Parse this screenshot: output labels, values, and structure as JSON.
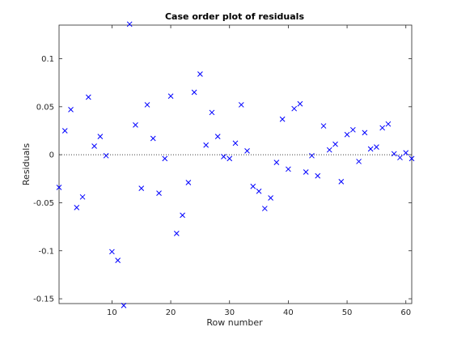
{
  "chart_data": {
    "type": "scatter",
    "title": "Case order plot of residuals",
    "xlabel": "Row number",
    "ylabel": "Residuals",
    "xlim": [
      1,
      61
    ],
    "ylim": [
      -0.155,
      0.135
    ],
    "xticks": [
      10,
      20,
      30,
      40,
      50,
      60
    ],
    "yticks": [
      -0.15,
      -0.1,
      -0.05,
      0,
      0.05,
      0.1
    ],
    "ytick_labels": [
      "-0.15",
      "-0.1",
      "-0.05",
      "0",
      "0.05",
      "0.1"
    ],
    "reference_line": {
      "y": 0,
      "style": "dotted"
    },
    "marker": "x",
    "marker_color": "#0000ff",
    "grid": false,
    "series": [
      {
        "x": [
          1,
          2,
          3,
          4,
          5,
          6,
          7,
          8,
          9,
          10,
          11,
          12,
          13,
          14,
          15,
          16,
          17,
          18,
          19,
          20,
          21,
          22,
          23,
          24,
          25,
          26,
          27,
          28,
          29,
          30,
          31,
          32,
          33,
          34,
          35,
          36,
          37,
          38,
          39,
          40,
          41,
          42,
          43,
          44,
          45,
          46,
          47,
          48,
          49,
          50,
          51,
          52,
          53,
          54,
          55,
          56,
          57,
          58,
          59,
          60,
          61
        ],
        "y": [
          -0.034,
          0.025,
          0.047,
          -0.055,
          -0.044,
          0.06,
          0.009,
          0.019,
          -0.001,
          -0.101,
          -0.11,
          -0.157,
          0.136,
          0.031,
          -0.035,
          0.052,
          0.017,
          -0.04,
          -0.004,
          0.061,
          -0.082,
          -0.063,
          -0.029,
          0.065,
          0.084,
          0.01,
          0.044,
          0.019,
          -0.002,
          -0.004,
          0.012,
          0.052,
          0.004,
          -0.033,
          -0.038,
          -0.056,
          -0.045,
          -0.008,
          0.037,
          -0.015,
          0.048,
          0.053,
          -0.018,
          -0.001,
          -0.022,
          0.03,
          0.005,
          0.011,
          -0.028,
          0.021,
          0.026,
          -0.007,
          0.023,
          0.006,
          0.008,
          0.028,
          0.032,
          0.001,
          -0.003,
          0.002,
          -0.004
        ]
      }
    ]
  }
}
